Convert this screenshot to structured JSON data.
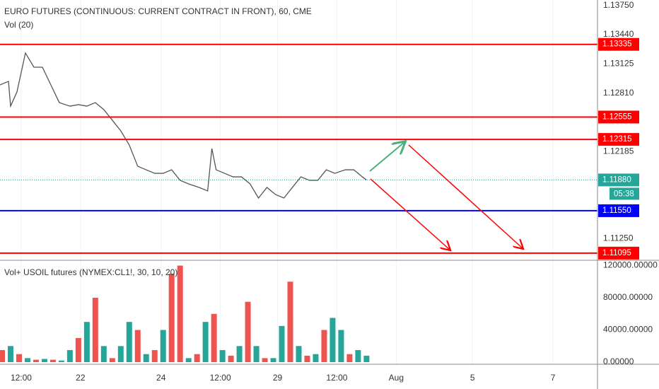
{
  "chart_data": [
    {
      "type": "line",
      "title": "EURO FUTURES (CONTINUOUS: CURRENT CONTRACT IN FRONT), 60, CME",
      "subtitle": "Vol (20)",
      "color": "#555555",
      "x": [
        0,
        4,
        5,
        8,
        12,
        16,
        20,
        24,
        28,
        33,
        37,
        41,
        45,
        49,
        53,
        57,
        61,
        65,
        69,
        73,
        77,
        81,
        85,
        89,
        94,
        98,
        100,
        102,
        106,
        110,
        114,
        118,
        122,
        126,
        130,
        134,
        138,
        142,
        146,
        150,
        154,
        158,
        163,
        167,
        171,
        173
      ],
      "values": [
        1.129,
        1.12938,
        1.12672,
        1.12824,
        1.13242,
        1.1309,
        1.1309,
        1.129,
        1.1271,
        1.12672,
        1.12688,
        1.12672,
        1.1271,
        1.12635,
        1.12521,
        1.12407,
        1.12255,
        1.12027,
        1.11989,
        1.11951,
        1.11951,
        1.11989,
        1.11876,
        1.11838,
        1.118,
        1.11762,
        1.12217,
        1.11989,
        1.11951,
        1.11913,
        1.11913,
        1.11838,
        1.11686,
        1.118,
        1.11724,
        1.11686,
        1.118,
        1.11913,
        1.11876,
        1.11876,
        1.11989,
        1.11951,
        1.11989,
        1.11989,
        1.11913,
        1.1188
      ],
      "xlim": [
        0,
        282
      ],
      "ylim": [
        1.11018,
        1.13811
      ],
      "yticks": [
        {
          "value": 1.1375,
          "label": "1.13750"
        },
        {
          "value": 1.1344,
          "label": "1.13440"
        },
        {
          "value": 1.13125,
          "label": "1.13125"
        },
        {
          "value": 1.1281,
          "label": "1.12810"
        },
        {
          "value": 1.12185,
          "label": "1.12185"
        },
        {
          "value": 1.1125,
          "label": "1.11250"
        }
      ],
      "levels": [
        {
          "value": 1.13335,
          "label": "1.13335",
          "color": "#ff0000"
        },
        {
          "value": 1.12555,
          "label": "1.12555",
          "color": "#ff0000"
        },
        {
          "value": 1.12315,
          "label": "1.12315",
          "color": "#ff0000"
        },
        {
          "value": 1.1155,
          "label": "1.11550",
          "color": "#0000ff"
        },
        {
          "value": 1.11095,
          "label": "1.11095",
          "color": "#ff0000"
        }
      ],
      "last": {
        "value": 1.1188,
        "label": "1.11880",
        "countdown": "05:38",
        "color": "#26a69a"
      },
      "grid": true
    },
    {
      "type": "bar",
      "title": "Vol+ USOIL futures (NYMEX:CL1!, 30, 10, 20)",
      "x": [
        1,
        5,
        9,
        13,
        17,
        21,
        25,
        29,
        33,
        37,
        41,
        45,
        49,
        53,
        57,
        61,
        65,
        69,
        73,
        77,
        81,
        85,
        89,
        93,
        97,
        101,
        105,
        109,
        113,
        117,
        121,
        125,
        129,
        133,
        137,
        141,
        145,
        149,
        153,
        157,
        161,
        165,
        169,
        173
      ],
      "values": [
        15000,
        20000,
        10000,
        5000,
        3000,
        4000,
        3000,
        2000,
        15000,
        30000,
        50000,
        80000,
        20000,
        5000,
        20000,
        50000,
        40000,
        10000,
        15000,
        40000,
        110000,
        120000,
        5000,
        10000,
        50000,
        60000,
        15000,
        8000,
        20000,
        75000,
        20000,
        5000,
        5000,
        45000,
        100000,
        20000,
        8000,
        10000,
        40000,
        55000,
        40000,
        10000,
        15000,
        8000
      ],
      "colors": [
        "#ef5350",
        "#26a69a",
        "#ef5350",
        "#26a69a",
        "#ef5350",
        "#26a69a",
        "#ef5350",
        "#26a69a",
        "#26a69a",
        "#ef5350",
        "#26a69a",
        "#ef5350",
        "#26a69a",
        "#ef5350",
        "#26a69a",
        "#26a69a",
        "#ef5350",
        "#26a69a",
        "#ef5350",
        "#26a69a",
        "#ef5350",
        "#ef5350",
        "#26a69a",
        "#ef5350",
        "#26a69a",
        "#ef5350",
        "#26a69a",
        "#ef5350",
        "#26a69a",
        "#ef5350",
        "#26a69a",
        "#ef5350",
        "#26a69a",
        "#26a69a",
        "#ef5350",
        "#26a69a",
        "#ef5350",
        "#26a69a",
        "#ef5350",
        "#26a69a",
        "#26a69a",
        "#ef5350",
        "#26a69a",
        "#26a69a"
      ],
      "xlim": [
        0,
        282
      ],
      "ylim": [
        -2600,
        126600
      ],
      "yticks": [
        {
          "value": 0,
          "label": "0.00000"
        },
        {
          "value": 40000,
          "label": "40000.00000"
        },
        {
          "value": 80000,
          "label": "80000.00000"
        },
        {
          "value": 120000,
          "label": "120000.00000"
        }
      ],
      "xticks": [
        {
          "value": 10,
          "label": "12:00"
        },
        {
          "value": 38,
          "label": "22"
        },
        {
          "value": 76,
          "label": "24"
        },
        {
          "value": 104,
          "label": "12:00"
        },
        {
          "value": 131,
          "label": "29"
        },
        {
          "value": 159,
          "label": "12:00"
        },
        {
          "value": 187,
          "label": "Aug"
        },
        {
          "value": 223,
          "label": "5"
        },
        {
          "value": 261,
          "label": "7"
        }
      ],
      "grid": true
    }
  ]
}
